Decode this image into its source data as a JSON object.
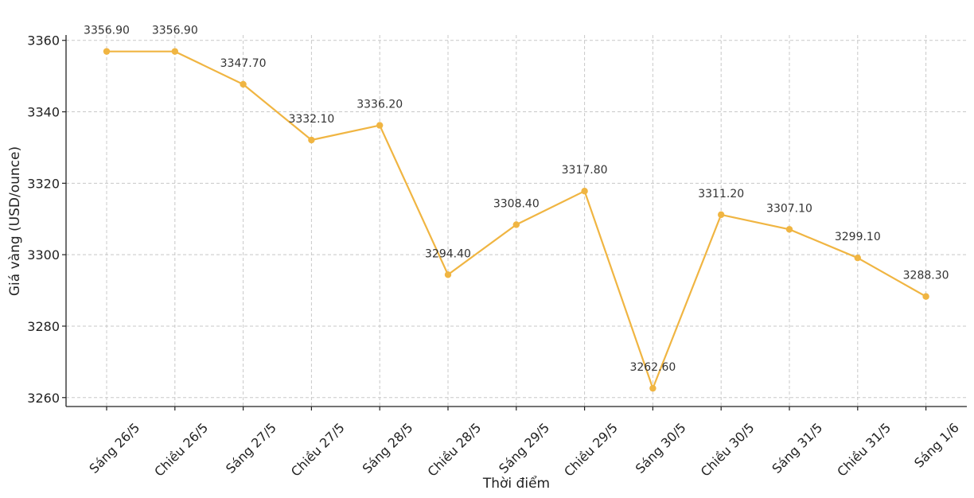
{
  "chart_data": {
    "type": "line",
    "title": "",
    "xlabel": "Thời điểm",
    "ylabel": "Giá vàng (USD/ounce)",
    "categories": [
      "Sáng 26/5",
      "Chiều 26/5",
      "Sáng 27/5",
      "Chiều 27/5",
      "Sáng 28/5",
      "Chiều 28/5",
      "Sáng 29/5",
      "Chiều 29/5",
      "Sáng 30/5",
      "Chiều 30/5",
      "Sáng 31/5",
      "Chiều 31/5",
      "Sáng 1/6"
    ],
    "series": [
      {
        "values": [
          3356.9,
          3356.9,
          3347.7,
          3332.1,
          3336.2,
          3294.4,
          3308.4,
          3317.8,
          3262.6,
          3311.2,
          3307.1,
          3299.1,
          3288.3
        ],
        "data_labels": [
          "3356.90",
          "3356.90",
          "3347.70",
          "3332.10",
          "3336.20",
          "3294.40",
          "3308.40",
          "3317.80",
          "3262.60",
          "3311.20",
          "3307.10",
          "3299.10",
          "3288.30"
        ],
        "color": "#F0B542"
      }
    ],
    "yticks": [
      3260,
      3280,
      3300,
      3320,
      3340,
      3360
    ],
    "ylim": [
      3257.5,
      3361.5
    ],
    "grid": true,
    "legend": "none"
  }
}
